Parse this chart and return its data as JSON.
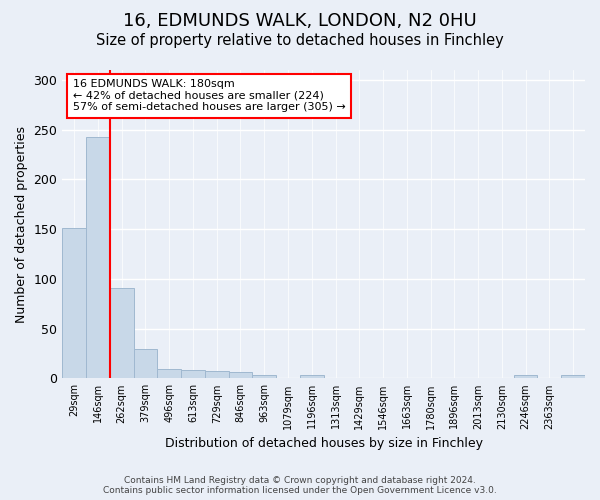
{
  "title1": "16, EDMUNDS WALK, LONDON, N2 0HU",
  "title2": "Size of property relative to detached houses in Finchley",
  "xlabel": "Distribution of detached houses by size in Finchley",
  "ylabel": "Number of detached properties",
  "bar_values": [
    151,
    243,
    91,
    29,
    9,
    8,
    7,
    6,
    3,
    0,
    3,
    0,
    0,
    0,
    0,
    0,
    0,
    0,
    0,
    3,
    0,
    3
  ],
  "bar_labels": [
    "29sqm",
    "146sqm",
    "262sqm",
    "379sqm",
    "496sqm",
    "613sqm",
    "729sqm",
    "846sqm",
    "963sqm",
    "1079sqm",
    "1196sqm",
    "1313sqm",
    "1429sqm",
    "1546sqm",
    "1663sqm",
    "1780sqm",
    "1896sqm",
    "2013sqm",
    "2130sqm",
    "2246sqm",
    "2363sqm",
    ""
  ],
  "bar_color": "#c8d8e8",
  "bar_edge_color": "#a0b8d0",
  "annotation_text": "16 EDMUNDS WALK: 180sqm\n← 42% of detached houses are smaller (224)\n57% of semi-detached houses are larger (305) →",
  "annotation_box_color": "white",
  "annotation_box_edge_color": "red",
  "redline_color": "red",
  "ylim": [
    0,
    310
  ],
  "yticks": [
    0,
    50,
    100,
    150,
    200,
    250,
    300
  ],
  "footer_text": "Contains HM Land Registry data © Crown copyright and database right 2024.\nContains public sector information licensed under the Open Government Licence v3.0.",
  "bg_color": "#eaeff7",
  "plot_bg_color": "#eaeff7",
  "grid_color": "white",
  "title1_fontsize": 13,
  "title2_fontsize": 10.5
}
